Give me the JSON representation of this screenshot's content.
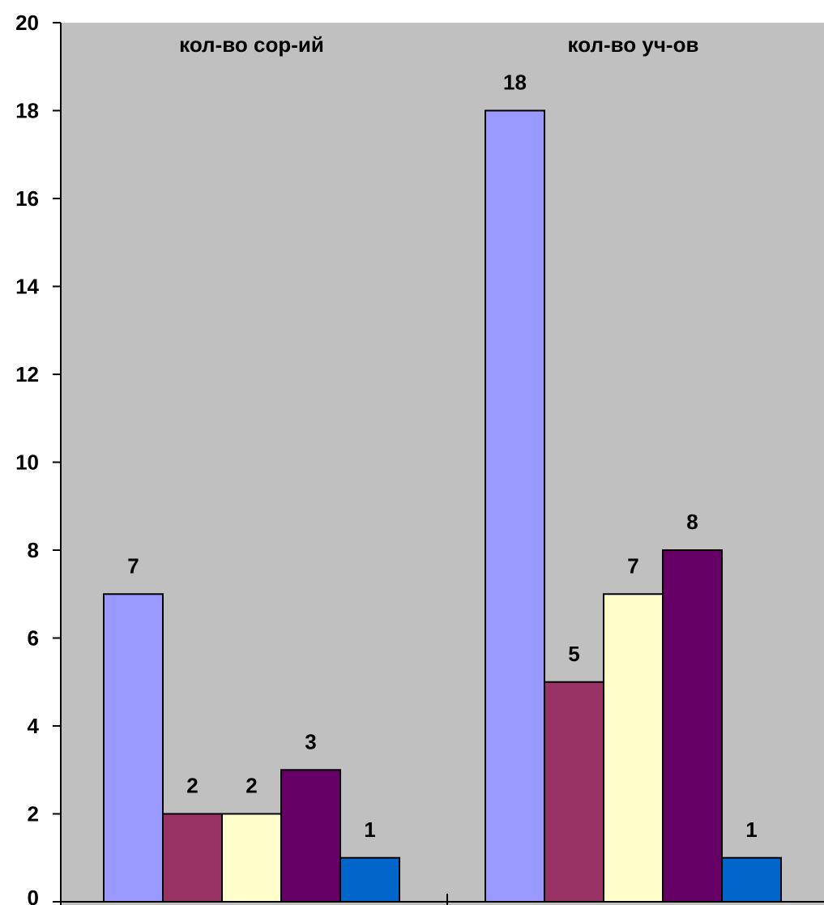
{
  "chart_data": {
    "type": "bar",
    "categories": [
      "кол-во сор-ий",
      "кол-во уч-ов"
    ],
    "series": [
      {
        "values": [
          7,
          18
        ],
        "color": "#9999ff"
      },
      {
        "values": [
          2,
          5
        ],
        "color": "#993366"
      },
      {
        "values": [
          2,
          7
        ],
        "color": "#ffffcc"
      },
      {
        "values": [
          3,
          8
        ],
        "color": "#660066"
      },
      {
        "values": [
          1,
          1
        ],
        "color": "#0066cc"
      }
    ],
    "ylim": [
      0,
      20
    ],
    "yticks": [
      0,
      2,
      4,
      6,
      8,
      10,
      12,
      14,
      16,
      18,
      20
    ],
    "grid": false,
    "legend": "none",
    "plot_background": "#c0c0c0",
    "data_labels": true
  }
}
